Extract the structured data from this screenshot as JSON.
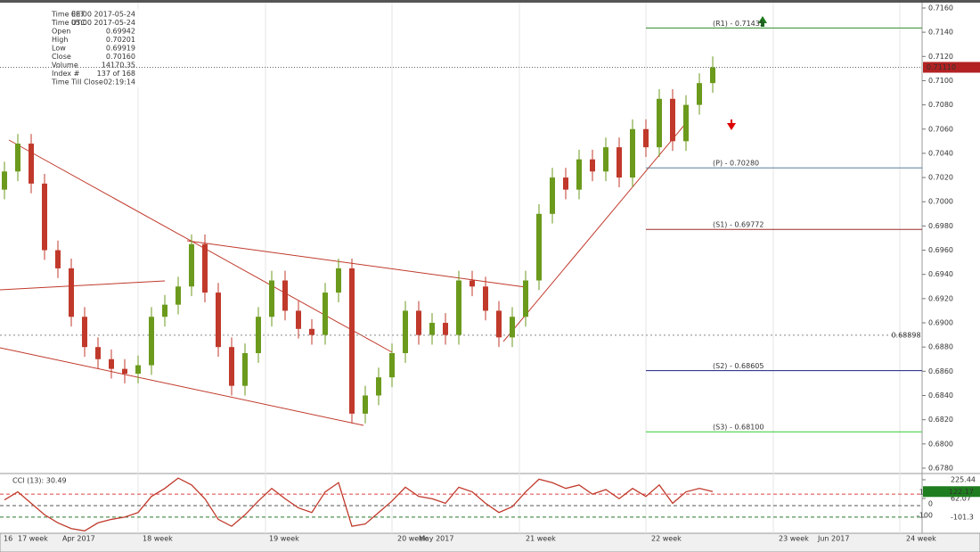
{
  "chart_data": {
    "type": "candlestick",
    "info": [
      {
        "label": "Time  EET",
        "value": "08:00 2017-05-24"
      },
      {
        "label": "Time  UTC",
        "value": "05:00 2017-05-24"
      },
      {
        "label": "Open",
        "value": "0.69942"
      },
      {
        "label": "High",
        "value": "0.70201"
      },
      {
        "label": "Low",
        "value": "0.69919"
      },
      {
        "label": "Close",
        "value": "0.70160"
      },
      {
        "label": "Volume",
        "value": "14170.35"
      },
      {
        "label": "Index #",
        "value": "137 of 168"
      },
      {
        "label": "Time Till Close",
        "value": "02:19:14"
      }
    ],
    "open": [
      0.701,
      0.7025,
      0.7048,
      0.7015,
      0.696,
      0.6945,
      0.6905,
      0.688,
      0.687,
      0.6862,
      0.6858,
      0.6865,
      0.6905,
      0.6915,
      0.693,
      0.6965,
      0.6925,
      0.688,
      0.6848,
      0.6875,
      0.6905,
      0.6935,
      0.691,
      0.6895,
      0.689,
      0.6925,
      0.6945,
      0.6825,
      0.684,
      0.6855,
      0.6875,
      0.691,
      0.689,
      0.69,
      0.689,
      0.6935,
      0.693,
      0.691,
      0.6888,
      0.6905,
      0.6935,
      0.699,
      0.702,
      0.701,
      0.7035,
      0.7025,
      0.7045,
      0.702,
      0.706,
      0.7045,
      0.7085,
      0.705,
      0.708,
      0.7098
    ],
    "high": [
      0.7033,
      0.7056,
      0.7056,
      0.7023,
      0.6968,
      0.6953,
      0.6913,
      0.6888,
      0.6878,
      0.687,
      0.6873,
      0.6913,
      0.6923,
      0.6938,
      0.6973,
      0.6973,
      0.6933,
      0.6888,
      0.6883,
      0.6913,
      0.6943,
      0.6943,
      0.6918,
      0.6903,
      0.6933,
      0.6953,
      0.6953,
      0.6848,
      0.6863,
      0.6883,
      0.6918,
      0.6918,
      0.6908,
      0.6908,
      0.6943,
      0.6943,
      0.6938,
      0.6918,
      0.6913,
      0.6943,
      0.6998,
      0.7028,
      0.7028,
      0.7043,
      0.7043,
      0.7053,
      0.7053,
      0.7068,
      0.7068,
      0.7093,
      0.7093,
      0.7088,
      0.7106,
      0.712
    ],
    "low": [
      0.7002,
      0.7017,
      0.7007,
      0.6952,
      0.6937,
      0.6897,
      0.6872,
      0.6862,
      0.6854,
      0.685,
      0.685,
      0.6857,
      0.6897,
      0.6907,
      0.6922,
      0.6917,
      0.6872,
      0.684,
      0.684,
      0.6867,
      0.6897,
      0.6902,
      0.6887,
      0.6882,
      0.6882,
      0.6917,
      0.6817,
      0.6817,
      0.6832,
      0.6847,
      0.6867,
      0.6882,
      0.6882,
      0.6882,
      0.6882,
      0.6922,
      0.6902,
      0.688,
      0.688,
      0.6897,
      0.6927,
      0.6982,
      0.7002,
      0.7002,
      0.7017,
      0.7017,
      0.7012,
      0.7012,
      0.7037,
      0.7037,
      0.7042,
      0.7042,
      0.7072,
      0.709
    ],
    "close": [
      0.7025,
      0.7048,
      0.7015,
      0.696,
      0.6945,
      0.6905,
      0.688,
      0.687,
      0.6862,
      0.6858,
      0.6865,
      0.6905,
      0.6915,
      0.693,
      0.6965,
      0.6925,
      0.688,
      0.6848,
      0.6875,
      0.6905,
      0.6935,
      0.691,
      0.6895,
      0.689,
      0.6925,
      0.6945,
      0.6825,
      0.684,
      0.6855,
      0.6875,
      0.691,
      0.689,
      0.69,
      0.689,
      0.6935,
      0.693,
      0.691,
      0.6888,
      0.6905,
      0.6935,
      0.699,
      0.702,
      0.701,
      0.7035,
      0.7025,
      0.7045,
      0.702,
      0.706,
      0.7045,
      0.7085,
      0.705,
      0.708,
      0.7098,
      0.7111
    ],
    "up_color": "#6b9a1c",
    "down_color": "#c0392b",
    "ylim": [
      0.67763,
      0.71644
    ],
    "yticks": [
      {
        "value": 0.716,
        "label": "0.7160"
      },
      {
        "value": 0.714,
        "label": "0.7140"
      },
      {
        "value": 0.712,
        "label": "0.7120"
      },
      {
        "value": 0.71,
        "label": "0.7100"
      },
      {
        "value": 0.708,
        "label": "0.7080"
      },
      {
        "value": 0.706,
        "label": "0.7060"
      },
      {
        "value": 0.704,
        "label": "0.7040"
      },
      {
        "value": 0.702,
        "label": "0.7020"
      },
      {
        "value": 0.7,
        "label": "0.7000"
      },
      {
        "value": 0.698,
        "label": "0.6980"
      },
      {
        "value": 0.696,
        "label": "0.6960"
      },
      {
        "value": 0.694,
        "label": "0.6940"
      },
      {
        "value": 0.692,
        "label": "0.6920"
      },
      {
        "value": 0.69,
        "label": "0.6900"
      },
      {
        "value": 0.688,
        "label": "0.6880"
      },
      {
        "value": 0.686,
        "label": "0.6860"
      },
      {
        "value": 0.684,
        "label": "0.6840"
      },
      {
        "value": 0.682,
        "label": "0.6820"
      },
      {
        "value": 0.68,
        "label": "0.6800"
      },
      {
        "value": 0.678,
        "label": "0.6780"
      }
    ],
    "current_price": {
      "value": 0.7111,
      "label": "0.71110"
    },
    "crosshair_price": {
      "value": 0.68898,
      "label": "0.68898"
    },
    "pivots": [
      {
        "label": "(R1) - 0.71435",
        "value": 0.71435,
        "color": "#2e8b2e"
      },
      {
        "label": "(P) - 0.70280",
        "value": 0.7028,
        "color": "#5a7d9a"
      },
      {
        "label": "(S1) - 0.69772",
        "value": 0.69772,
        "color": "#a02828"
      },
      {
        "label": "(S2) - 0.68605",
        "value": 0.68605,
        "color": "#1a237e"
      },
      {
        "label": "(S3) - 0.68100",
        "value": 0.681,
        "color": "#33cc33"
      }
    ],
    "cci": {
      "title": "CCI (13): 30.49",
      "color": "#c0392b",
      "values": [
        50,
        120,
        20,
        -80,
        -150,
        -200,
        -220,
        -150,
        -120,
        -100,
        -60,
        80,
        150,
        240,
        180,
        60,
        -120,
        -180,
        -80,
        40,
        150,
        60,
        -20,
        -60,
        120,
        200,
        -180,
        -160,
        -60,
        40,
        160,
        80,
        60,
        20,
        160,
        120,
        20,
        -60,
        -10,
        120,
        230,
        200,
        150,
        180,
        100,
        140,
        60,
        150,
        80,
        180,
        20,
        120,
        150,
        122.17
      ],
      "ylim": [
        -241,
        264
      ],
      "levels": [
        100,
        0,
        -100
      ],
      "yticks": [
        225.44,
        62.07,
        -101.3
      ]
    },
    "x_labels": [
      "16",
      "17 week",
      "Apr 2017",
      "18 week",
      "19 week",
      "20 week",
      "May 2017",
      "21 week",
      "22 week",
      "23 week",
      "Jun 2017",
      "24 week"
    ]
  }
}
